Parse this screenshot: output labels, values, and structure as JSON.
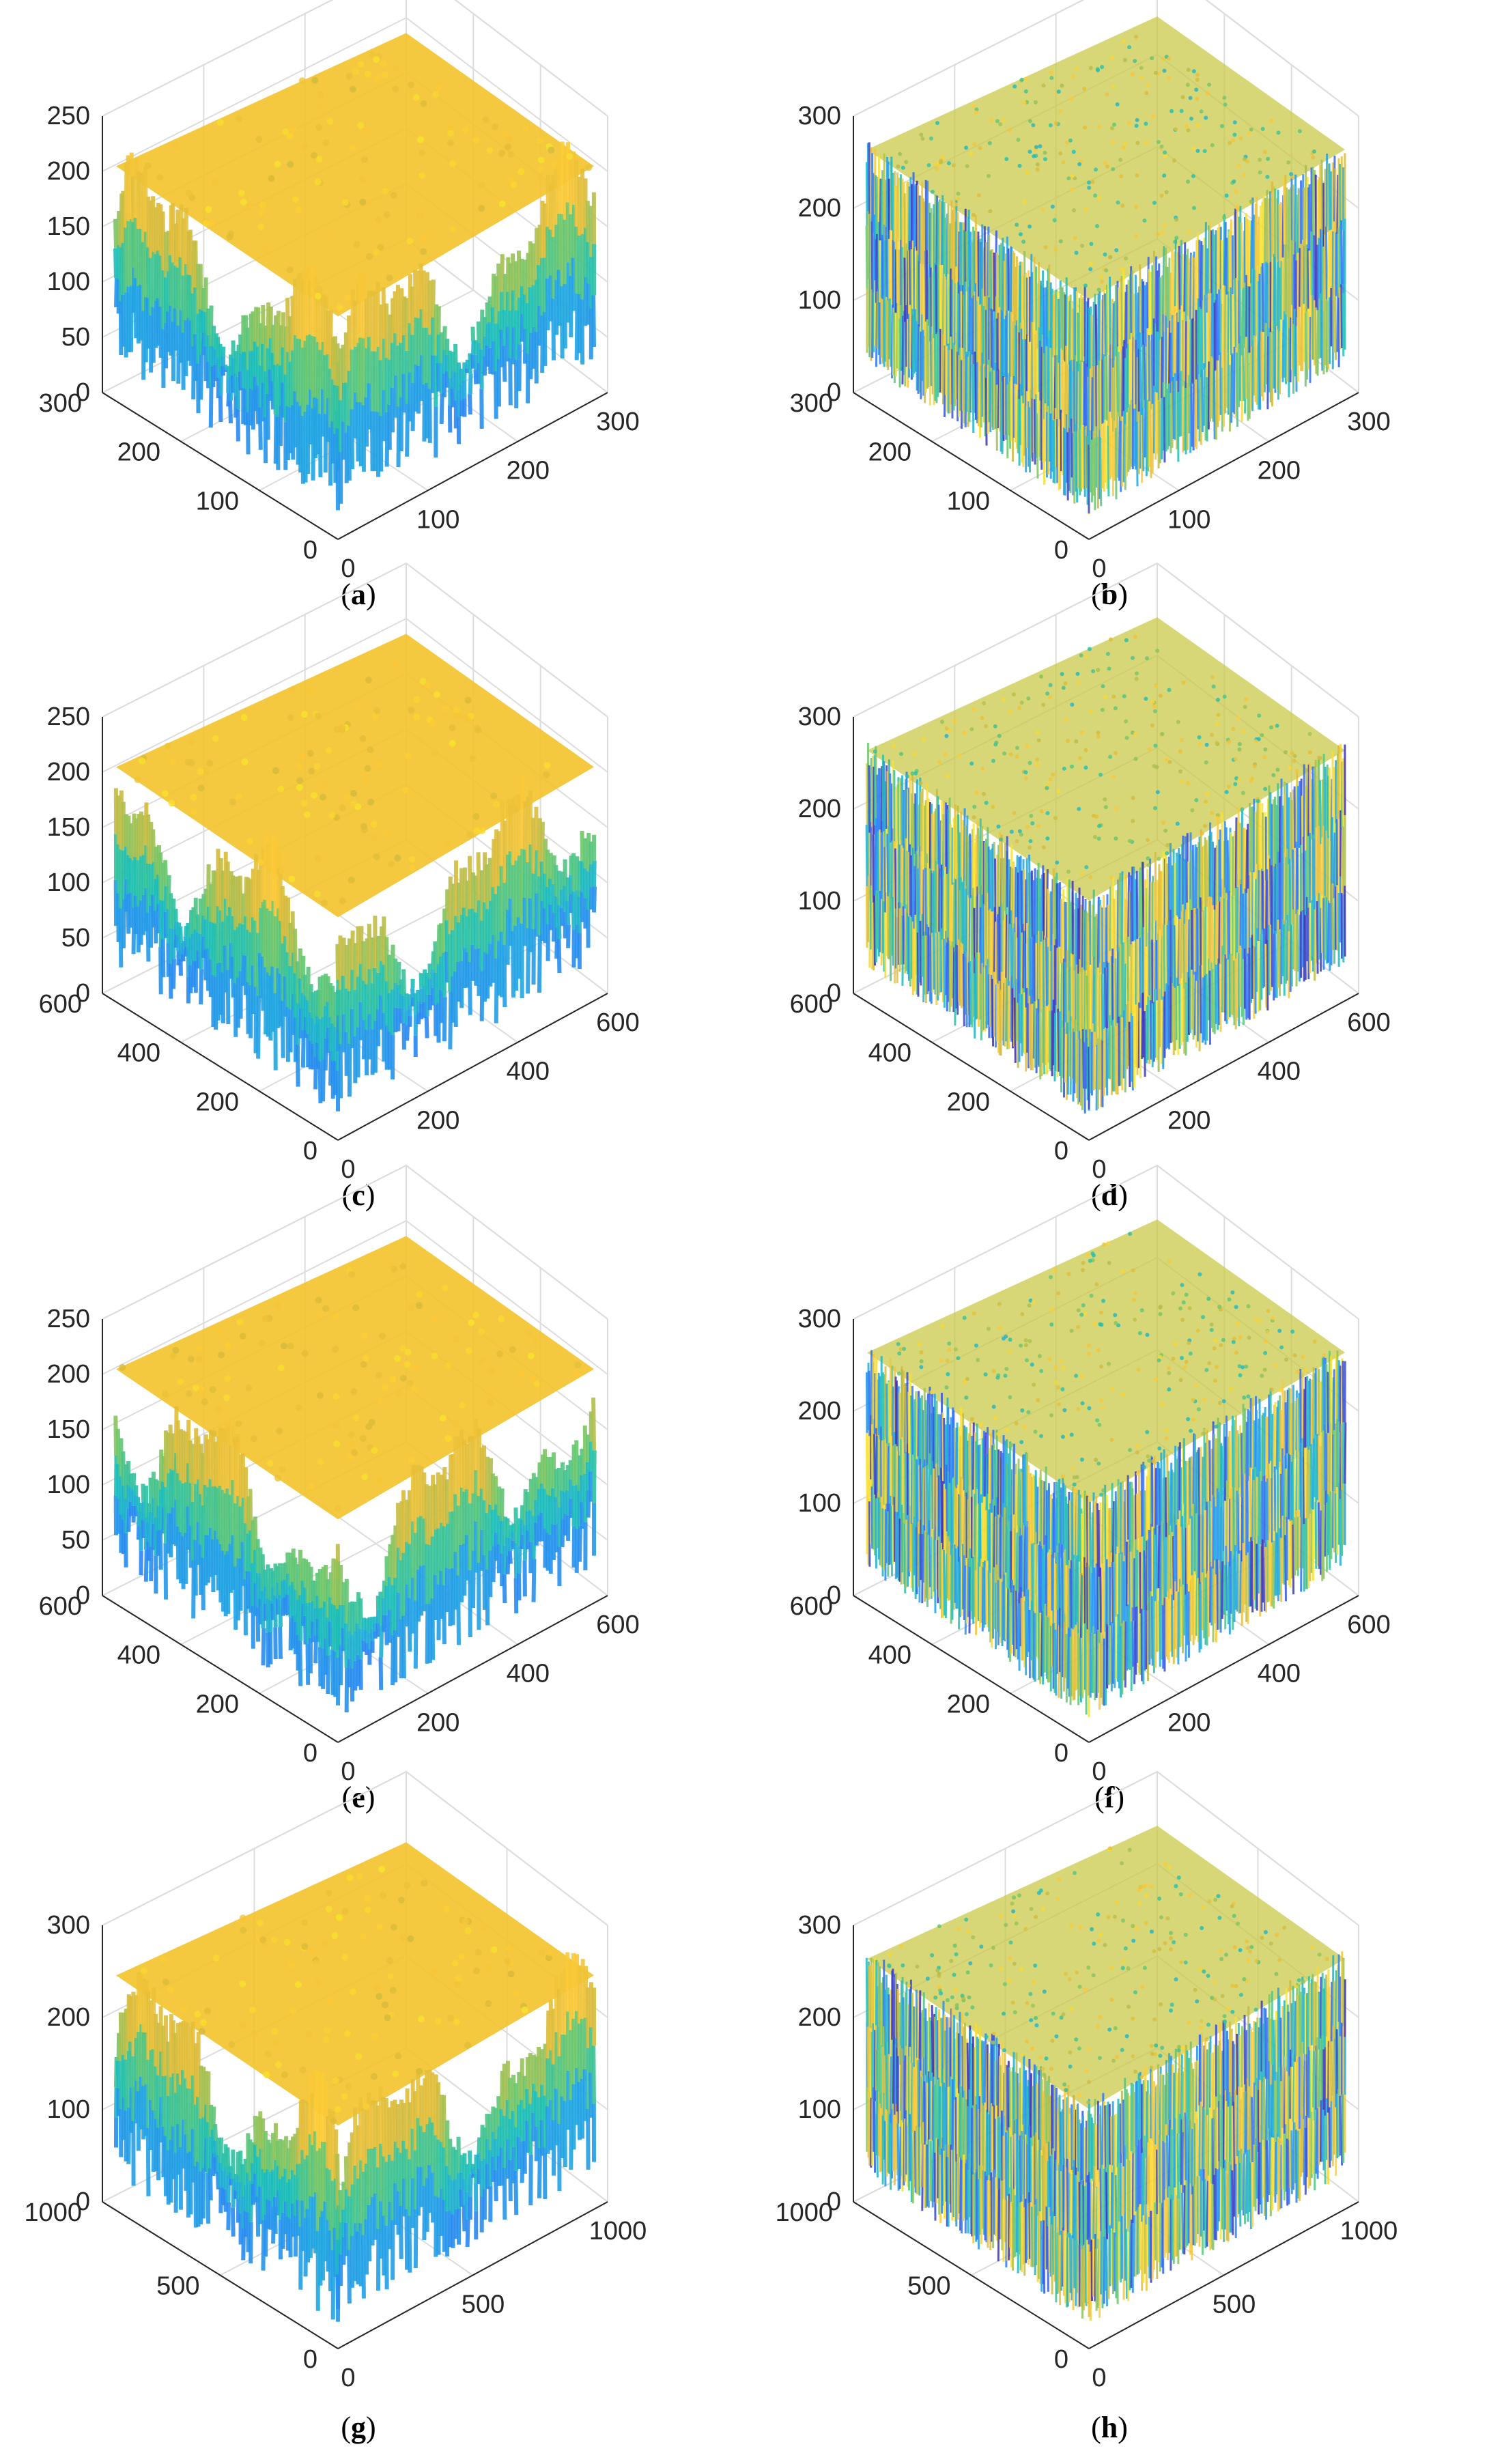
{
  "figure": {
    "colormap": [
      "#3e26a8",
      "#2f72fd",
      "#20a5e2",
      "#1bbfb5",
      "#6bc66b",
      "#d8ba3a",
      "#fcc837",
      "#f7e82a"
    ],
    "axis_color": "#262626",
    "grid_color": "#dcdcdc"
  },
  "chart_data": [
    {
      "id": "a",
      "caption": "a",
      "type": "surface3d",
      "style": "smooth",
      "xticks": [
        "0",
        "100",
        "200",
        "300"
      ],
      "yticks": [
        "0",
        "100",
        "200",
        "300"
      ],
      "zticks": [
        "0",
        "50",
        "100",
        "150",
        "200",
        "250"
      ],
      "xlim": [
        0,
        300
      ],
      "ylim": [
        0,
        300
      ],
      "zlim": [
        0,
        250
      ],
      "grid": true
    },
    {
      "id": "b",
      "caption": "b",
      "type": "surface3d",
      "style": "noise",
      "xticks": [
        "0",
        "100",
        "200",
        "300"
      ],
      "yticks": [
        "0",
        "100",
        "200",
        "300"
      ],
      "zticks": [
        "0",
        "100",
        "200",
        "300"
      ],
      "xlim": [
        0,
        300
      ],
      "ylim": [
        0,
        300
      ],
      "zlim": [
        0,
        300
      ],
      "grid": true
    },
    {
      "id": "c",
      "caption": "c",
      "type": "surface3d",
      "style": "smooth",
      "xticks": [
        "0",
        "200",
        "400",
        "600"
      ],
      "yticks": [
        "0",
        "200",
        "400",
        "600"
      ],
      "zticks": [
        "0",
        "50",
        "100",
        "150",
        "200",
        "250"
      ],
      "xlim": [
        0,
        600
      ],
      "ylim": [
        0,
        600
      ],
      "zlim": [
        0,
        250
      ],
      "grid": true
    },
    {
      "id": "d",
      "caption": "d",
      "type": "surface3d",
      "style": "noise",
      "xticks": [
        "0",
        "200",
        "400",
        "600"
      ],
      "yticks": [
        "0",
        "200",
        "400",
        "600"
      ],
      "zticks": [
        "0",
        "100",
        "200",
        "300"
      ],
      "xlim": [
        0,
        600
      ],
      "ylim": [
        0,
        600
      ],
      "zlim": [
        0,
        300
      ],
      "grid": true
    },
    {
      "id": "e",
      "caption": "e",
      "type": "surface3d",
      "style": "smooth",
      "xticks": [
        "0",
        "200",
        "400",
        "600"
      ],
      "yticks": [
        "0",
        "200",
        "400",
        "600"
      ],
      "zticks": [
        "0",
        "50",
        "100",
        "150",
        "200",
        "250"
      ],
      "xlim": [
        0,
        600
      ],
      "ylim": [
        0,
        600
      ],
      "zlim": [
        0,
        250
      ],
      "grid": true
    },
    {
      "id": "f",
      "caption": "f",
      "type": "surface3d",
      "style": "noise",
      "xticks": [
        "0",
        "200",
        "400",
        "600"
      ],
      "yticks": [
        "0",
        "200",
        "400",
        "600"
      ],
      "zticks": [
        "0",
        "100",
        "200",
        "300"
      ],
      "xlim": [
        0,
        600
      ],
      "ylim": [
        0,
        600
      ],
      "zlim": [
        0,
        300
      ],
      "grid": true
    },
    {
      "id": "g",
      "caption": "g",
      "type": "surface3d",
      "style": "smooth",
      "xticks": [
        "0",
        "500",
        "1000"
      ],
      "yticks": [
        "0",
        "500",
        "1000"
      ],
      "zticks": [
        "0",
        "100",
        "200",
        "300"
      ],
      "xlim": [
        0,
        1000
      ],
      "ylim": [
        0,
        1000
      ],
      "zlim": [
        0,
        300
      ],
      "grid": true
    },
    {
      "id": "h",
      "caption": "h",
      "type": "surface3d",
      "style": "noise",
      "xticks": [
        "0",
        "500",
        "1000"
      ],
      "yticks": [
        "0",
        "500",
        "1000"
      ],
      "zticks": [
        "0",
        "100",
        "200",
        "300"
      ],
      "xlim": [
        0,
        1000
      ],
      "ylim": [
        0,
        1000
      ],
      "zlim": [
        0,
        300
      ],
      "grid": true
    }
  ]
}
